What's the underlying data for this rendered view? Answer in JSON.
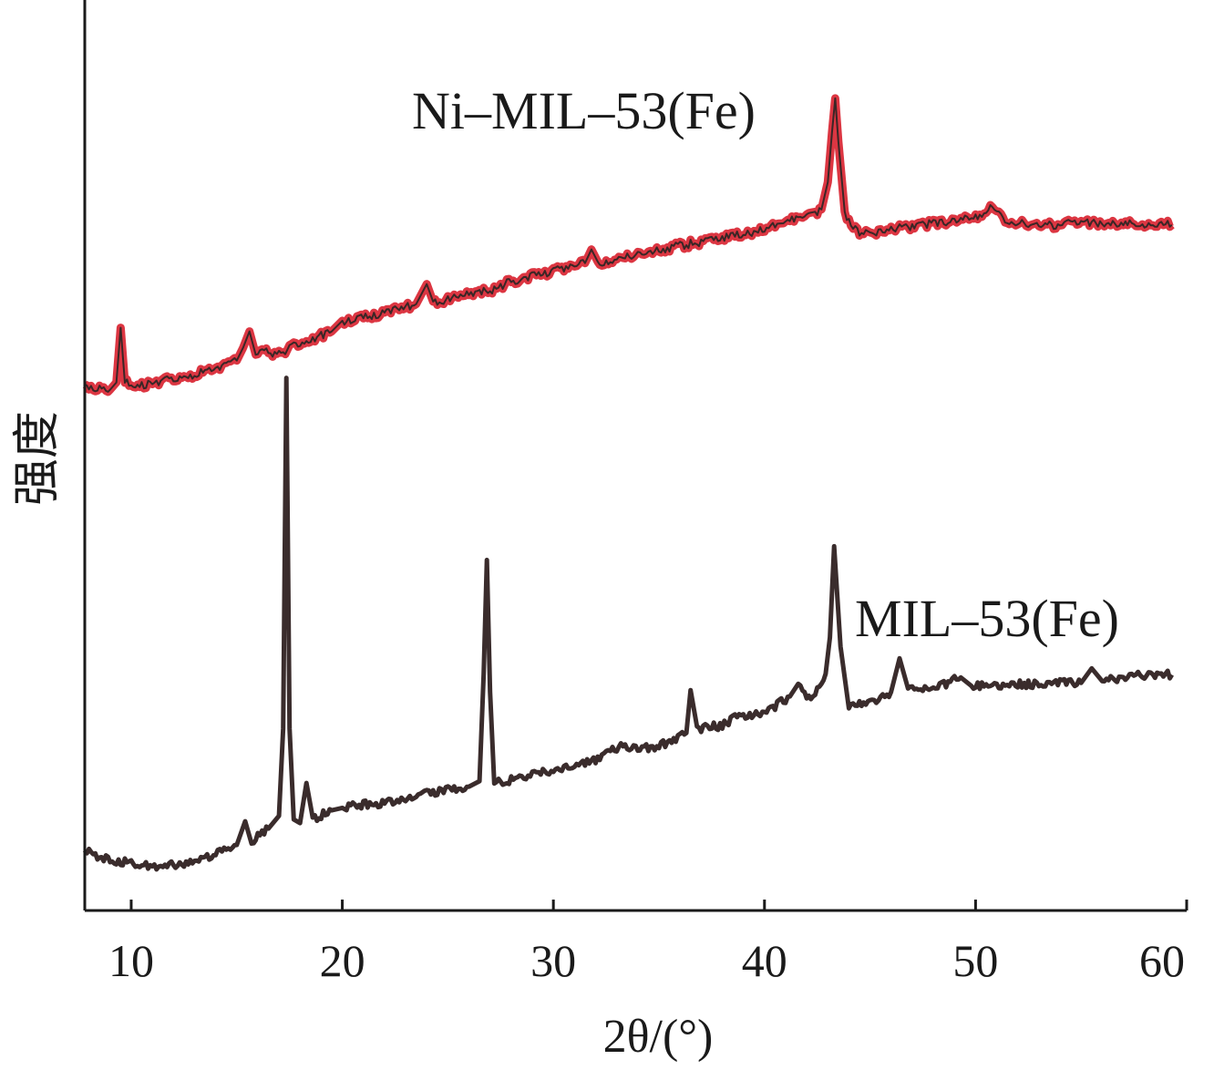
{
  "chart_data": {
    "type": "line",
    "title": "",
    "xlabel": "2θ/(°)",
    "ylabel": "强度",
    "xlim": [
      7.8,
      60
    ],
    "ylim": [
      0,
      100
    ],
    "x_ticks": [
      10,
      20,
      30,
      40,
      50,
      60
    ],
    "x_tick_labels": [
      "10",
      "20",
      "30",
      "40",
      "50",
      "60"
    ],
    "y_ticks_shown": false,
    "grid": false,
    "series": [
      {
        "name": "Ni–MIL–53(Fe)",
        "color": "#d8202e",
        "points": [
          [
            7.8,
            57.5
          ],
          [
            9.0,
            57.2
          ],
          [
            9.3,
            58.0
          ],
          [
            9.5,
            64.0
          ],
          [
            9.7,
            58.0
          ],
          [
            10.5,
            57.6
          ],
          [
            12.0,
            58.5
          ],
          [
            14.0,
            59.3
          ],
          [
            15.0,
            60.4
          ],
          [
            15.3,
            61.8
          ],
          [
            15.6,
            63.6
          ],
          [
            15.9,
            61.4
          ],
          [
            17.0,
            61.2
          ],
          [
            18.0,
            62.3
          ],
          [
            19.5,
            63.6
          ],
          [
            20.0,
            64.6
          ],
          [
            22.0,
            65.7
          ],
          [
            23.5,
            66.6
          ],
          [
            24.0,
            68.8
          ],
          [
            24.3,
            66.6
          ],
          [
            25.5,
            67.6
          ],
          [
            27.0,
            68.1
          ],
          [
            28.0,
            69.1
          ],
          [
            30.0,
            70.2
          ],
          [
            31.5,
            71.1
          ],
          [
            31.8,
            72.6
          ],
          [
            32.1,
            71.1
          ],
          [
            34.0,
            72.2
          ],
          [
            36.0,
            73.0
          ],
          [
            38.0,
            73.9
          ],
          [
            40.0,
            74.8
          ],
          [
            41.0,
            75.7
          ],
          [
            42.0,
            76.3
          ],
          [
            42.7,
            77.0
          ],
          [
            43.0,
            80.0
          ],
          [
            43.2,
            85.5
          ],
          [
            43.35,
            89.2
          ],
          [
            43.5,
            84.5
          ],
          [
            43.8,
            76.5
          ],
          [
            44.5,
            74.3
          ],
          [
            46.0,
            74.8
          ],
          [
            48.0,
            75.5
          ],
          [
            50.0,
            76.1
          ],
          [
            50.8,
            77.3
          ],
          [
            51.4,
            75.9
          ],
          [
            53.0,
            75.2
          ],
          [
            55.0,
            75.5
          ],
          [
            57.0,
            75.5
          ],
          [
            59.3,
            75.3
          ]
        ]
      },
      {
        "name": "MIL–53(Fe)",
        "color": "#3a2c2c",
        "points": [
          [
            7.8,
            6.5
          ],
          [
            9.0,
            5.5
          ],
          [
            10.0,
            5.3
          ],
          [
            11.0,
            4.7
          ],
          [
            12.0,
            5.0
          ],
          [
            13.5,
            5.7
          ],
          [
            15.0,
            7.2
          ],
          [
            15.4,
            9.8
          ],
          [
            15.7,
            7.6
          ],
          [
            16.5,
            9.0
          ],
          [
            17.0,
            10.4
          ],
          [
            17.2,
            20.0
          ],
          [
            17.35,
            58.5
          ],
          [
            17.5,
            20.0
          ],
          [
            17.7,
            10.0
          ],
          [
            18.0,
            9.6
          ],
          [
            18.3,
            14.0
          ],
          [
            18.6,
            10.0
          ],
          [
            19.5,
            11.0
          ],
          [
            20.0,
            11.4
          ],
          [
            22.0,
            11.8
          ],
          [
            24.0,
            12.8
          ],
          [
            26.0,
            13.6
          ],
          [
            26.5,
            14.2
          ],
          [
            26.7,
            26.0
          ],
          [
            26.85,
            38.5
          ],
          [
            27.0,
            24.0
          ],
          [
            27.2,
            14.0
          ],
          [
            28.5,
            14.6
          ],
          [
            30.0,
            15.4
          ],
          [
            32.0,
            16.5
          ],
          [
            33.3,
            18.3
          ],
          [
            34.0,
            17.6
          ],
          [
            35.5,
            18.4
          ],
          [
            36.3,
            19.5
          ],
          [
            36.5,
            24.2
          ],
          [
            36.8,
            20.0
          ],
          [
            38.0,
            20.3
          ],
          [
            38.8,
            21.5
          ],
          [
            40.0,
            21.6
          ],
          [
            41.2,
            23.5
          ],
          [
            41.6,
            25.0
          ],
          [
            42.2,
            23.0
          ],
          [
            42.9,
            26.0
          ],
          [
            43.1,
            30.0
          ],
          [
            43.3,
            40.0
          ],
          [
            43.6,
            29.0
          ],
          [
            44.0,
            22.5
          ],
          [
            45.0,
            22.8
          ],
          [
            46.0,
            24.0
          ],
          [
            46.4,
            27.7
          ],
          [
            46.8,
            24.5
          ],
          [
            48.0,
            24.4
          ],
          [
            49.3,
            25.6
          ],
          [
            49.8,
            24.6
          ],
          [
            51.0,
            24.8
          ],
          [
            53.0,
            24.9
          ],
          [
            55.0,
            25.0
          ],
          [
            55.5,
            26.6
          ],
          [
            56.0,
            25.3
          ],
          [
            57.5,
            25.8
          ],
          [
            59.3,
            25.9
          ]
        ]
      }
    ],
    "annotations": [
      "Ni–MIL–53(Fe)",
      "MIL–53(Fe)"
    ]
  }
}
